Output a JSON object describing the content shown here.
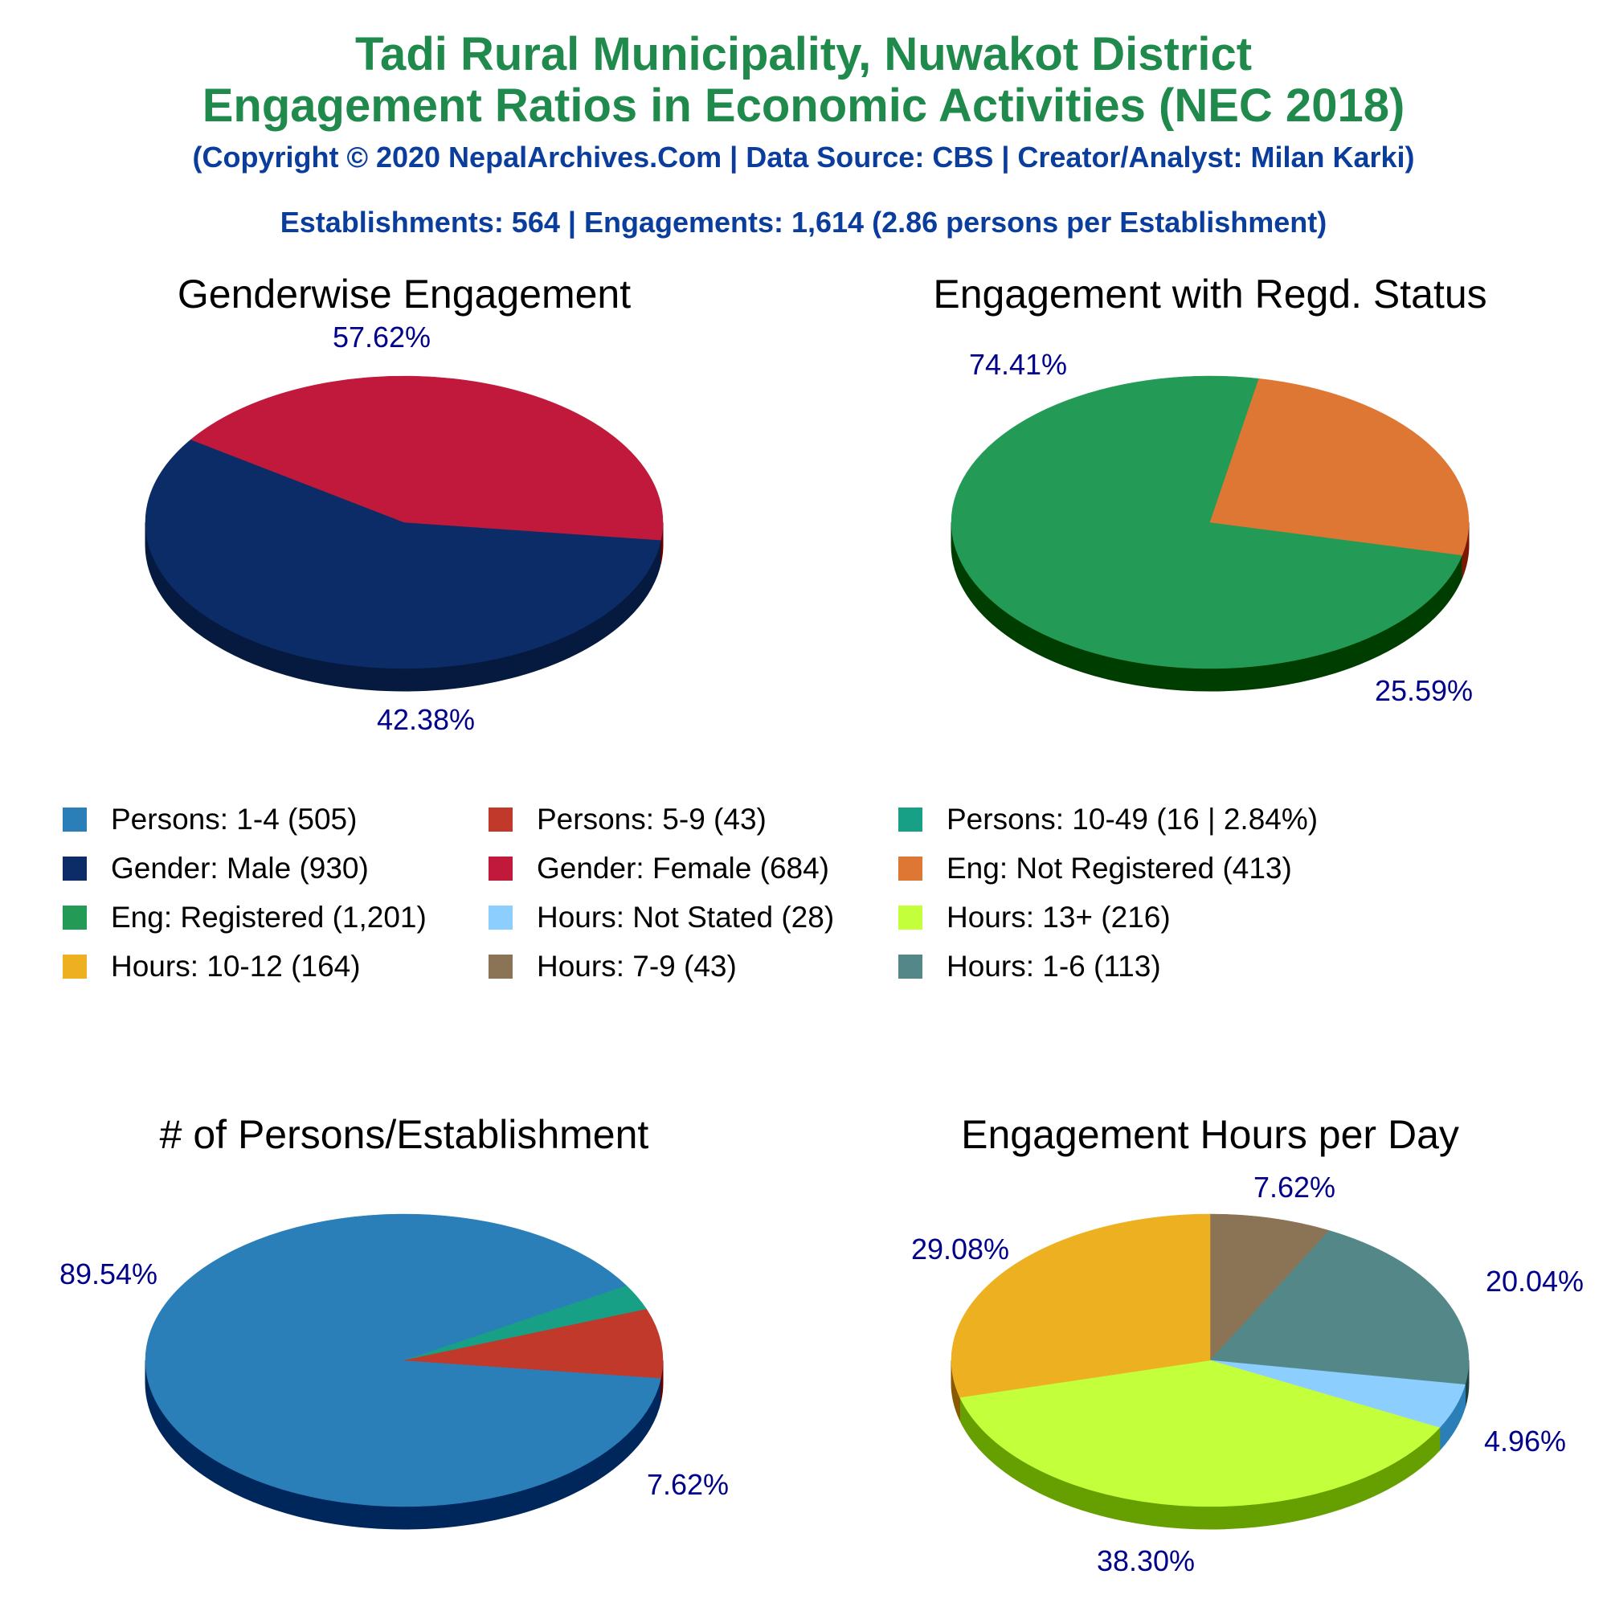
{
  "header": {
    "title_line1": "Tadi Rural Municipality, Nuwakot District",
    "title_line2": "Engagement Ratios in Economic Activities (NEC 2018)",
    "copyright": "(Copyright © 2020 NepalArchives.Com | Data Source: CBS | Creator/Analyst: Milan Karki)",
    "summary": "Establishments: 564 | Engagements: 1,614 (2.86 persons per Establishment)"
  },
  "legend": [
    {
      "label": "Persons: 1-4 (505)",
      "color": "#2a7fb8"
    },
    {
      "label": "Persons: 5-9 (43)",
      "color": "#c0392b"
    },
    {
      "label": "Persons: 10-49 (16 | 2.84%)",
      "color": "#17a085"
    },
    {
      "label": "Gender: Male (930)",
      "color": "#0b2c66"
    },
    {
      "label": "Gender: Female (684)",
      "color": "#c0193b"
    },
    {
      "label": "Eng: Not Registered (413)",
      "color": "#de7733"
    },
    {
      "label": "Eng: Registered (1,201)",
      "color": "#239b56"
    },
    {
      "label": "Hours: Not Stated (28)",
      "color": "#8ccfff"
    },
    {
      "label": "Hours: 13+ (216)",
      "color": "#c3ff3a"
    },
    {
      "label": "Hours: 10-12 (164)",
      "color": "#edb021"
    },
    {
      "label": "Hours: 7-9 (43)",
      "color": "#8b7355"
    },
    {
      "label": "Hours: 1-6 (113)",
      "color": "#548888"
    }
  ],
  "chart_data": [
    {
      "type": "pie",
      "title": "Genderwise Engagement",
      "slices": [
        {
          "name": "Gender: Male",
          "value": 930,
          "percent_label": "57.62%",
          "color": "#0b2c66",
          "side": "#061a3f"
        },
        {
          "name": "Gender: Female",
          "value": 684,
          "percent_label": "42.38%",
          "color": "#c0193b",
          "side": "#660000"
        }
      ]
    },
    {
      "type": "pie",
      "title": "Engagement with Regd. Status",
      "slices": [
        {
          "name": "Eng: Registered",
          "value": 1201,
          "percent_label": "74.41%",
          "color": "#239b56",
          "side": "#003d00"
        },
        {
          "name": "Eng: Not Registered",
          "value": 413,
          "percent_label": "25.59%",
          "color": "#de7733",
          "side": "#7a1800"
        }
      ]
    },
    {
      "type": "pie",
      "title": "# of Persons/Establishment",
      "slices": [
        {
          "name": "Persons: 1-4",
          "value": 505,
          "percent_label": "89.54%",
          "color": "#2a7fb8",
          "side": "#00275c"
        },
        {
          "name": "Persons: 10-49",
          "value": 16,
          "percent_label": "",
          "color": "#17a085",
          "side": "#00402c"
        },
        {
          "name": "Persons: 5-9",
          "value": 43,
          "percent_label": "7.62%",
          "color": "#c0392b",
          "side": "#660000"
        }
      ]
    },
    {
      "type": "pie",
      "title": "Engagement Hours per Day",
      "slices": [
        {
          "name": "Hours: 7-9",
          "value": 43,
          "percent_label": "7.62%",
          "color": "#8b7355",
          "side": "#3d2b14"
        },
        {
          "name": "Hours: 1-6",
          "value": 113,
          "percent_label": "20.04%",
          "color": "#548888",
          "side": "#1d4040"
        },
        {
          "name": "Hours: Not Stated",
          "value": 28,
          "percent_label": "4.96%",
          "color": "#8ccfff",
          "side": "#2a7fb8"
        },
        {
          "name": "Hours: 13+",
          "value": 216,
          "percent_label": "38.30%",
          "color": "#c3ff3a",
          "side": "#66a000"
        },
        {
          "name": "Hours: 10-12",
          "value": 164,
          "percent_label": "29.08%",
          "color": "#edb021",
          "side": "#8a5a00"
        }
      ]
    }
  ]
}
